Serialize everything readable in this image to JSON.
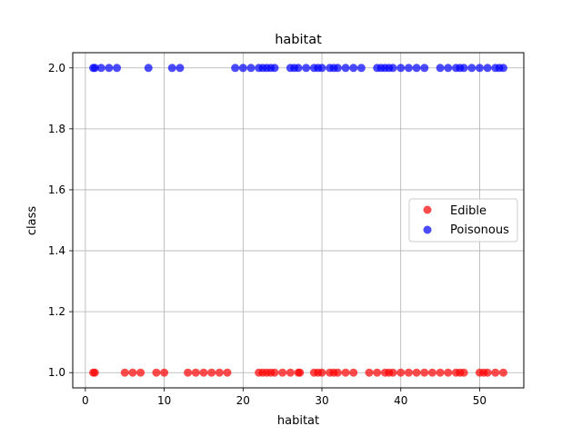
{
  "chart_data": {
    "type": "scatter",
    "title": "habitat",
    "xlabel": "habitat",
    "ylabel": "class",
    "xlim": [
      -1.6,
      55.6
    ],
    "ylim": [
      0.95,
      2.05
    ],
    "xticks": [
      0,
      10,
      20,
      30,
      40,
      50
    ],
    "xtick_labels": [
      "0",
      "10",
      "20",
      "30",
      "40",
      "50"
    ],
    "yticks": [
      1.0,
      1.2,
      1.4,
      1.6,
      1.8,
      2.0
    ],
    "ytick_labels": [
      "1.0",
      "1.2",
      "1.4",
      "1.6",
      "1.8",
      "2.0"
    ],
    "grid": true,
    "legend_position": "center-right",
    "series": [
      {
        "name": "Edible",
        "color": "#ff0000",
        "y": 1.0,
        "x": [
          1,
          1.2,
          5,
          6,
          7,
          9,
          10,
          13,
          14,
          15,
          16,
          17,
          18,
          22,
          22.5,
          23,
          23.5,
          24,
          25,
          26,
          27,
          27.2,
          29,
          29.5,
          30,
          31,
          31.5,
          32,
          33,
          34,
          36,
          37,
          38,
          38.5,
          39,
          40,
          41,
          42,
          43,
          44,
          45,
          46,
          47,
          47.5,
          48,
          50,
          50.5,
          51,
          52,
          53
        ]
      },
      {
        "name": "Poisonous",
        "color": "#0000ff",
        "y": 2.0,
        "x": [
          1,
          1.2,
          2,
          3,
          4,
          8,
          11,
          12,
          19,
          20,
          21,
          22,
          22.5,
          23,
          23.5,
          24,
          26,
          26.5,
          27,
          28,
          29,
          29.5,
          30,
          31,
          31.5,
          32,
          33,
          34,
          35,
          37,
          37.5,
          38,
          38.5,
          39,
          40,
          41,
          42,
          43,
          45,
          46,
          47,
          47.5,
          48,
          49,
          50,
          51,
          52,
          52.5,
          53
        ]
      }
    ]
  }
}
